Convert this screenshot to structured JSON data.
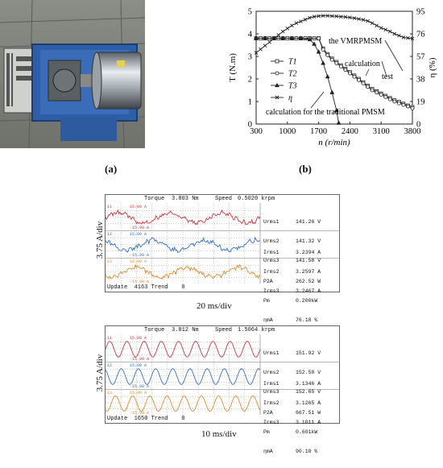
{
  "figure": {
    "label_a": "(a)",
    "label_b": "(b)"
  },
  "colors": {
    "red": "#c8383c",
    "blue": "#2f6fc9",
    "orange": "#e08a2e"
  },
  "chart_data": [
    {
      "type": "line",
      "xlabel": "n (r/min)",
      "ylabel_left": "T (N.m)",
      "ylabel_right": "η (%)",
      "xlim": [
        300,
        3800
      ],
      "ylim_left": [
        0,
        5
      ],
      "ylim_right": [
        0,
        95
      ],
      "x_ticks": [
        "300",
        "1000",
        "1700",
        "2400",
        "3100",
        "3800"
      ],
      "y_left_ticks": [
        "0",
        "1",
        "2",
        "3",
        "4",
        "5"
      ],
      "y_right_ticks": [
        "0",
        "19",
        "38",
        "57",
        "76",
        "95"
      ],
      "series": [
        {
          "name": "T1",
          "marker": "square",
          "axis": "left",
          "x": [
            300,
            400,
            500,
            600,
            700,
            800,
            900,
            1000,
            1100,
            1200,
            1300,
            1400,
            1500,
            1600,
            1700,
            1800,
            1900,
            2000,
            2100,
            2200,
            2300,
            2400,
            2500,
            2600,
            2700,
            2800,
            2900,
            3000,
            3100,
            3200,
            3300,
            3400,
            3500,
            3600,
            3700,
            3800
          ],
          "values": [
            3.8,
            3.8,
            3.8,
            3.8,
            3.8,
            3.8,
            3.8,
            3.8,
            3.8,
            3.8,
            3.8,
            3.8,
            3.8,
            3.8,
            3.8,
            3.35,
            3.1,
            2.9,
            2.75,
            2.6,
            2.45,
            2.3,
            2.15,
            2.0,
            1.85,
            1.7,
            1.55,
            1.45,
            1.35,
            1.25,
            1.15,
            1.05,
            0.98,
            0.9,
            0.82,
            0.75
          ]
        },
        {
          "name": "T2",
          "marker": "circle",
          "axis": "left",
          "x": [
            300,
            500,
            700,
            900,
            1100,
            1300,
            1500,
            1700,
            1800,
            1900,
            2000,
            2100,
            2200,
            2300,
            2400,
            2500,
            2600,
            2700,
            2800,
            2900,
            3000,
            3100,
            3200,
            3300,
            3400,
            3500,
            3600,
            3700,
            3800
          ],
          "values": [
            3.8,
            3.8,
            3.8,
            3.8,
            3.8,
            3.8,
            3.8,
            3.8,
            3.3,
            3.05,
            2.85,
            2.7,
            2.55,
            2.4,
            2.25,
            2.1,
            1.95,
            1.8,
            1.65,
            1.5,
            1.4,
            1.3,
            1.2,
            1.1,
            1.0,
            0.92,
            0.85,
            0.78,
            0.7
          ]
        },
        {
          "name": "T3",
          "marker": "triangle",
          "axis": "left",
          "x": [
            300,
            500,
            700,
            900,
            1100,
            1300,
            1500,
            1600,
            1700,
            1800,
            1900,
            2000,
            2100,
            2150
          ],
          "values": [
            3.8,
            3.8,
            3.8,
            3.8,
            3.8,
            3.8,
            3.75,
            3.55,
            3.2,
            2.7,
            2.1,
            1.4,
            0.6,
            0.05
          ]
        },
        {
          "name": "η",
          "marker": "x",
          "axis": "right",
          "x": [
            300,
            400,
            500,
            600,
            700,
            800,
            900,
            1000,
            1100,
            1200,
            1300,
            1400,
            1500,
            1600,
            1700,
            1800,
            1900,
            2000,
            2100,
            2200,
            2300,
            2400,
            2500,
            2600,
            2700,
            2800,
            2900,
            3000,
            3100,
            3200,
            3300,
            3400,
            3500,
            3600,
            3700,
            3800
          ],
          "values": [
            60,
            63,
            66,
            69,
            72,
            75,
            78,
            80.5,
            83,
            85,
            86.5,
            88,
            89.5,
            90.5,
            91,
            91.2,
            91.2,
            91,
            90.8,
            90.5,
            90.2,
            89.8,
            89.2,
            88.5,
            87.8,
            86.8,
            85,
            83,
            81,
            79.5,
            78,
            76,
            74.5,
            73,
            72.5,
            72
          ]
        }
      ],
      "annotations": [
        {
          "text": "the VMRPMSM"
        },
        {
          "text": "calculation"
        },
        {
          "text": "test"
        },
        {
          "text": "calculation for the traditional PMSM"
        }
      ],
      "legend": "left-middle"
    },
    {
      "type": "line",
      "xlabel": "20 ms/div",
      "ylabel": "3.75 A/div",
      "header": {
        "torque_label": "Torque",
        "torque": "3.803 Nm",
        "speed_label": "Speed",
        "speed": "0.5020 krpm"
      },
      "footer": "Update  4163 Trend    0",
      "readouts": [
        {
          "name": "Urms1",
          "value": "141.26 V"
        },
        {
          "name": "Urms2",
          "value": "141.32 V"
        },
        {
          "name": "Urms3",
          "value": "141.58 V"
        },
        {
          "name": "Irms1",
          "value": "3.2394 A"
        },
        {
          "name": "Irms2",
          "value": "3.2597 A"
        },
        {
          "name": "Irms3",
          "value": "3.2467 A"
        },
        {
          "name": "P2A",
          "value": "262.52 W"
        },
        {
          "name": "Pm",
          "value": "0.200kW"
        },
        {
          "name": "ηmA",
          "value": "76.18 %"
        }
      ],
      "trace_labels": [
        "15.00 A",
        "-15.00 A"
      ],
      "cycles": 3,
      "noise": "high"
    },
    {
      "type": "line",
      "xlabel": "10 ms/div",
      "ylabel": "3.75 A/div",
      "header": {
        "torque_label": "Torque",
        "torque": "3.812 Nm",
        "speed_label": "Speed",
        "speed": "1.5064 krpm"
      },
      "footer": "Update  1650 Trend    0",
      "readouts": [
        {
          "name": "Urms1",
          "value": "151.92 V"
        },
        {
          "name": "Urms2",
          "value": "152.50 V"
        },
        {
          "name": "Urms3",
          "value": "152.65 V"
        },
        {
          "name": "Irms1",
          "value": "3.1346 A"
        },
        {
          "name": "Irms2",
          "value": "3.1265 A"
        },
        {
          "name": "Irms3",
          "value": "3.1011 A"
        },
        {
          "name": "P2A",
          "value": "667.51 W"
        },
        {
          "name": "Pm",
          "value": "0.601kW"
        },
        {
          "name": "ηmA",
          "value": "90.10 %"
        }
      ],
      "trace_labels": [
        "15.00 A",
        "-15.00 A"
      ],
      "cycles": 9,
      "noise": "low"
    }
  ]
}
